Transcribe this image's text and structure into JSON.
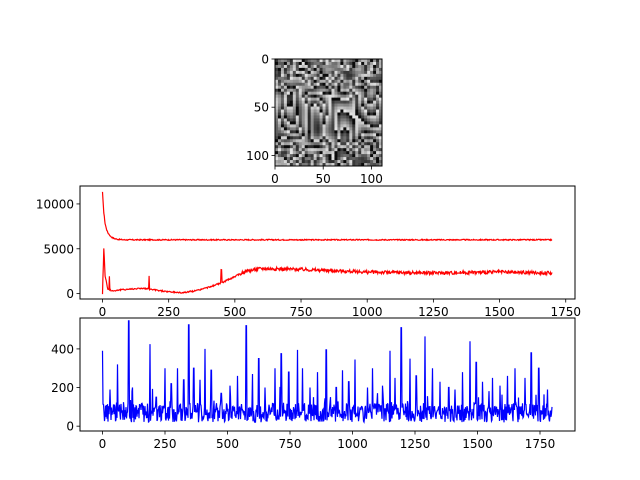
{
  "chart_data": [
    {
      "type": "heatmap",
      "colormap": "gray",
      "x_ticks": [
        0,
        50,
        100
      ],
      "y_ticks": [
        0,
        50,
        100
      ],
      "xlim": [
        0,
        111
      ],
      "ylim": [
        111,
        0
      ],
      "grid": false
    },
    {
      "type": "line",
      "color": "#ff0000",
      "x_ticks": [
        0,
        250,
        500,
        750,
        1000,
        1250,
        1500,
        1750
      ],
      "y_ticks": [
        0,
        5000,
        10000
      ],
      "xlim": [
        -85,
        1785
      ],
      "ylim": [
        -600,
        12000
      ],
      "grid": false,
      "series": [
        {
          "x": [
            0,
            5,
            10,
            15,
            20,
            30,
            40,
            50,
            60,
            80,
            100,
            150,
            200,
            300,
            500,
            750,
            1000,
            1250,
            1500,
            1700
          ],
          "values": [
            11300,
            9000,
            7800,
            7200,
            6800,
            6400,
            6200,
            6100,
            6050,
            6000,
            6000,
            6000,
            6000,
            6000,
            6000,
            6000,
            6000,
            6000,
            6000,
            6000
          ]
        },
        {
          "x": [
            0,
            5,
            10,
            20,
            40,
            60,
            100,
            150,
            200,
            250,
            300,
            350,
            400,
            450,
            500,
            540,
            600,
            750,
            1000,
            1250,
            1500,
            1700
          ],
          "values": [
            0,
            5000,
            2000,
            500,
            300,
            400,
            500,
            600,
            400,
            200,
            100,
            300,
            700,
            1200,
            1900,
            2500,
            2800,
            2700,
            2400,
            2300,
            2400,
            2300
          ]
        }
      ]
    },
    {
      "type": "line",
      "color": "#0000ff",
      "x_ticks": [
        0,
        250,
        500,
        750,
        1000,
        1250,
        1500,
        1750
      ],
      "y_ticks": [
        0,
        200,
        400
      ],
      "xlim": [
        -90,
        1890
      ],
      "ylim": [
        -25,
        560
      ],
      "grid": false,
      "series": [
        {
          "n_points": 1800,
          "baseline_range": [
            20,
            120
          ],
          "peaks": [
            {
              "x": 0,
              "y": 390
            },
            {
              "x": 30,
              "y": 190
            },
            {
              "x": 60,
              "y": 320
            },
            {
              "x": 105,
              "y": 545
            },
            {
              "x": 120,
              "y": 200
            },
            {
              "x": 190,
              "y": 425
            },
            {
              "x": 215,
              "y": 150
            },
            {
              "x": 250,
              "y": 300
            },
            {
              "x": 275,
              "y": 220
            },
            {
              "x": 300,
              "y": 300
            },
            {
              "x": 325,
              "y": 240
            },
            {
              "x": 345,
              "y": 525
            },
            {
              "x": 365,
              "y": 300
            },
            {
              "x": 390,
              "y": 240
            },
            {
              "x": 410,
              "y": 400
            },
            {
              "x": 435,
              "y": 290
            },
            {
              "x": 475,
              "y": 170
            },
            {
              "x": 510,
              "y": 210
            },
            {
              "x": 540,
              "y": 260
            },
            {
              "x": 575,
              "y": 520
            },
            {
              "x": 600,
              "y": 270
            },
            {
              "x": 625,
              "y": 350
            },
            {
              "x": 650,
              "y": 200
            },
            {
              "x": 690,
              "y": 300
            },
            {
              "x": 715,
              "y": 375
            },
            {
              "x": 745,
              "y": 280
            },
            {
              "x": 780,
              "y": 395
            },
            {
              "x": 800,
              "y": 300
            },
            {
              "x": 830,
              "y": 200
            },
            {
              "x": 860,
              "y": 280
            },
            {
              "x": 895,
              "y": 395
            },
            {
              "x": 935,
              "y": 200
            },
            {
              "x": 960,
              "y": 290
            },
            {
              "x": 985,
              "y": 230
            },
            {
              "x": 1010,
              "y": 345
            },
            {
              "x": 1060,
              "y": 200
            },
            {
              "x": 1080,
              "y": 300
            },
            {
              "x": 1120,
              "y": 210
            },
            {
              "x": 1150,
              "y": 390
            },
            {
              "x": 1170,
              "y": 250
            },
            {
              "x": 1195,
              "y": 510
            },
            {
              "x": 1230,
              "y": 350
            },
            {
              "x": 1255,
              "y": 260
            },
            {
              "x": 1290,
              "y": 465
            },
            {
              "x": 1320,
              "y": 300
            },
            {
              "x": 1350,
              "y": 230
            },
            {
              "x": 1385,
              "y": 200
            },
            {
              "x": 1410,
              "y": 190
            },
            {
              "x": 1440,
              "y": 280
            },
            {
              "x": 1470,
              "y": 440
            },
            {
              "x": 1495,
              "y": 330
            },
            {
              "x": 1520,
              "y": 230
            },
            {
              "x": 1560,
              "y": 250
            },
            {
              "x": 1590,
              "y": 210
            },
            {
              "x": 1620,
              "y": 260
            },
            {
              "x": 1650,
              "y": 300
            },
            {
              "x": 1690,
              "y": 250
            },
            {
              "x": 1715,
              "y": 380
            },
            {
              "x": 1745,
              "y": 300
            },
            {
              "x": 1780,
              "y": 190
            }
          ]
        }
      ]
    }
  ]
}
